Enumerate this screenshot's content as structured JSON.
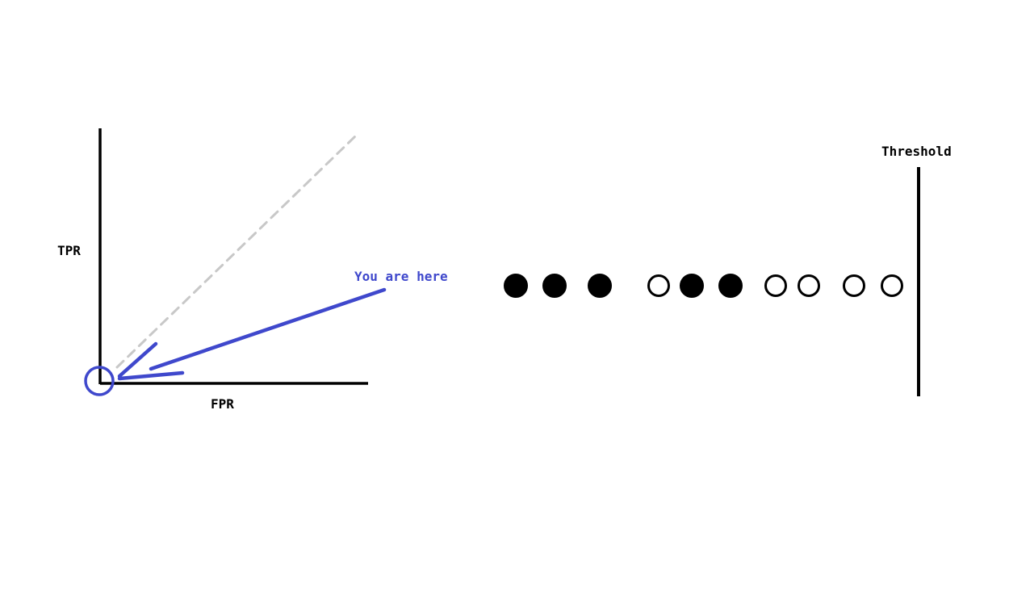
{
  "labels": {
    "y_axis": "TPR",
    "x_axis": "FPR",
    "annotation": "You are here",
    "threshold": "Threshold"
  },
  "colors": {
    "ink": "#000000",
    "accent": "#3f48cc",
    "guide": "#c8c8c8",
    "background": "#ffffff"
  },
  "samples": [
    {
      "filled": true
    },
    {
      "filled": true
    },
    {
      "filled": true
    },
    {
      "filled": false
    },
    {
      "filled": true
    },
    {
      "filled": true
    },
    {
      "filled": false
    },
    {
      "filled": false
    },
    {
      "filled": false
    },
    {
      "filled": false
    }
  ]
}
